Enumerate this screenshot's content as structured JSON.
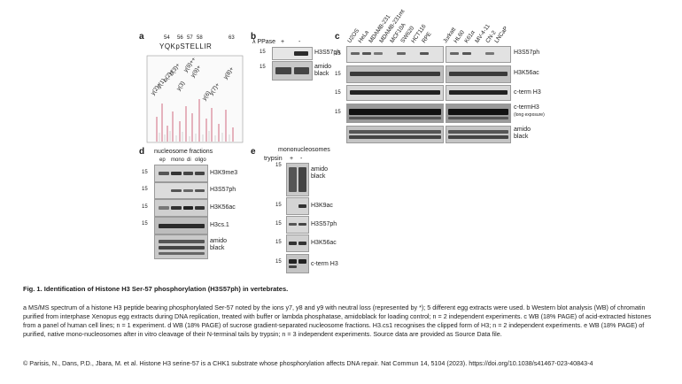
{
  "panels": {
    "a": {
      "letter": "a",
      "numbers": [
        "54",
        "56",
        "57",
        "58",
        "63"
      ],
      "sequence": "YQKpSTELLIR",
      "peaks": [
        "y(2)+",
        "y(1)",
        "b(2)+",
        "b(3)+",
        "y(3)",
        "y(9)++",
        "y(9)+",
        "y(6)",
        "y(7)+",
        "y(8)+"
      ]
    },
    "b": {
      "letter": "b",
      "treatment": "λ PPase",
      "cols": [
        "+",
        "-"
      ],
      "mw": [
        "15",
        "15"
      ],
      "rows": [
        "H3S57ph",
        "amido black"
      ]
    },
    "c": {
      "letter": "c",
      "cell_lines": [
        "U2OS",
        "HeLa",
        "MDAMB-231",
        "MDAMB-231mt",
        "MCF10A",
        "SW620",
        "HCT116",
        "RPE",
        "Jurkatt",
        "HL60",
        "K61α",
        "MV-4-11",
        "CN-2",
        "LNCaP"
      ],
      "mw": [
        "15",
        "15",
        "15",
        "15"
      ],
      "rows": [
        "H3S57ph",
        "H3K56ac",
        "c-term H3",
        "c-termH3",
        "(long exposure)",
        "amido black"
      ]
    },
    "d": {
      "letter": "d",
      "title": "nucleosome fractions",
      "cols": [
        "ep",
        "mono",
        "di",
        "oligo"
      ],
      "mw": [
        "15",
        "15",
        "15",
        "15"
      ],
      "rows": [
        "H3K9me3",
        "H3S57ph",
        "H3K56ac",
        "H3cs.1",
        "amido black"
      ]
    },
    "e": {
      "letter": "e",
      "title": "mononucleosomes",
      "treatment": "trypsin",
      "cols": [
        "+",
        "-"
      ],
      "mw": [
        "15",
        "15",
        "15",
        "15",
        "15"
      ],
      "rows": [
        "amido black",
        "H3K9ac",
        "H3S57ph",
        "H3K56ac",
        "c-term H3"
      ]
    }
  },
  "caption": {
    "title": "Fig. 1. Identification of Histone H3 Ser-57 phosphorylation (H3S57ph) in vertebrates.",
    "body": "a MS/MS spectrum of a histone H3 peptide bearing phosphorylated Ser-57 noted by the ions y7, y8 and y9 with neutral loss (represented by *); 5 different egg extracts were used. b Western blot analysis (WB) of chromatin purified from interphase Xenopus egg extracts during DNA replication, treated with buffer or lambda phosphatase, amidoblack for loading control; n = 2 independent experiments. c WB (18% PAGE) of acid-extracted histones from a panel of human cell lines; n = 1 experiment. d WB (18% PAGE) of sucrose gradient-separated nucleosome fractions. H3.cs1 recognises the clipped form of H3; n = 2 independent experiments. e WB (18% PAGE) of purified, native mono-nucleosomes after in vitro cleavage of their N-terminal tails by trypsin; n = 3 independent experiments. Source data are provided as Source Data file.",
    "citation": "© Parisis, N., Dans, P.D., Jbara, M. et al. Histone H3 serine-57 is a CHK1 substrate whose phosphorylation affects DNA repair. Nat Commun 14, 5104 (2023). https://doi.org/10.1038/s41467-023-40843-4"
  }
}
